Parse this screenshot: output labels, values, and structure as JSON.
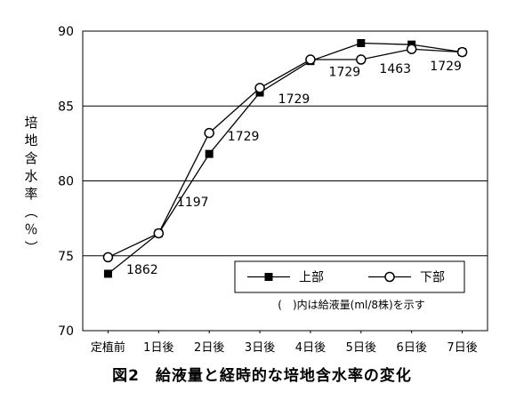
{
  "figure_caption": "図2　給液量と経時的な培地含水率の変化",
  "chart_data": {
    "type": "line",
    "title": "",
    "xlabel": "",
    "ylabel": "培地含水率（％）",
    "categories": [
      "定植前",
      "1日後",
      "2日後",
      "3日後",
      "4日後",
      "5日後",
      "6日後",
      "7日後"
    ],
    "ylim": [
      70,
      90
    ],
    "yticks": [
      70,
      75,
      80,
      85,
      90
    ],
    "grid": "horizontal",
    "legend_position": "bottom-right",
    "series": [
      {
        "name": "上部",
        "marker": "filled-square",
        "color": "#000000",
        "values": [
          73.8,
          76.5,
          81.8,
          85.9,
          88.0,
          89.2,
          89.1,
          88.6
        ]
      },
      {
        "name": "下部",
        "marker": "open-circle",
        "color": "#000000",
        "values": [
          74.9,
          76.5,
          83.2,
          86.2,
          88.1,
          88.1,
          88.8,
          88.6
        ]
      }
    ],
    "annotations": [
      {
        "text": "1862",
        "between": [
          "定植前",
          "1日後"
        ],
        "y": 74.1
      },
      {
        "text": "1197",
        "between": [
          "1日後",
          "2日後"
        ],
        "y": 78.6
      },
      {
        "text": "1729",
        "between": [
          "2日後",
          "3日後"
        ],
        "y": 83.0
      },
      {
        "text": "1729",
        "between": [
          "3日後",
          "4日後"
        ],
        "y": 85.5
      },
      {
        "text": "1729",
        "between": [
          "4日後",
          "5日後"
        ],
        "y": 87.3
      },
      {
        "text": "1463",
        "between": [
          "5日後",
          "6日後"
        ],
        "y": 87.5
      },
      {
        "text": "1729",
        "between": [
          "6日後",
          "7日後"
        ],
        "y": 87.7
      }
    ],
    "legend_note": "(　)内は給液量(ml/8株)を示す"
  }
}
